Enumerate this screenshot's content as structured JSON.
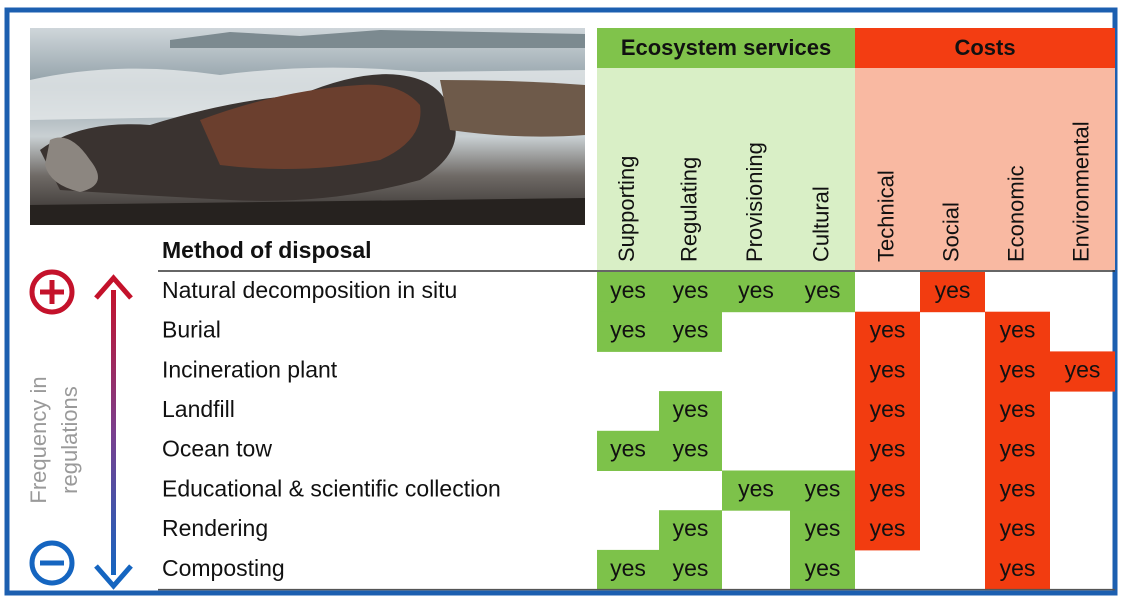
{
  "header": {
    "method_label": "Method of disposal"
  },
  "side_label": [
    "Frequency in",
    "regulations"
  ],
  "groups": [
    {
      "label": "Ecosystem services",
      "header_color": "#80c34b",
      "column_color": "#d9efc6",
      "cell_color": "#7dc24a",
      "columns": [
        "Supporting",
        "Regulating",
        "Provisioning",
        "Cultural"
      ]
    },
    {
      "label": "Costs",
      "header_color": "#f33d12",
      "column_color": "#f9b9a2",
      "cell_color": "#f23c10",
      "columns": [
        "Technical",
        "Social",
        "Economic",
        "Environmental"
      ]
    }
  ],
  "rows": [
    {
      "label": "Natural decomposition in situ",
      "cells": [
        "yes",
        "yes",
        "yes",
        "yes",
        null,
        "yes",
        null,
        null
      ]
    },
    {
      "label": "Burial",
      "cells": [
        "yes",
        "yes",
        null,
        null,
        "yes",
        null,
        "yes",
        null
      ]
    },
    {
      "label": "Incineration plant",
      "cells": [
        null,
        null,
        null,
        null,
        "yes",
        null,
        "yes",
        "yes"
      ]
    },
    {
      "label": "Landfill",
      "cells": [
        null,
        "yes",
        null,
        null,
        "yes",
        null,
        "yes",
        null
      ]
    },
    {
      "label": "Ocean tow",
      "cells": [
        "yes",
        "yes",
        null,
        null,
        "yes",
        null,
        "yes",
        null
      ]
    },
    {
      "label": "Educational & scientific collection",
      "cells": [
        null,
        null,
        "yes",
        "yes",
        "yes",
        null,
        "yes",
        null
      ]
    },
    {
      "label": "Rendering",
      "cells": [
        null,
        "yes",
        null,
        "yes",
        "yes",
        null,
        "yes",
        null
      ]
    },
    {
      "label": "Composting",
      "cells": [
        "yes",
        "yes",
        null,
        "yes",
        null,
        null,
        "yes",
        null
      ]
    }
  ]
}
